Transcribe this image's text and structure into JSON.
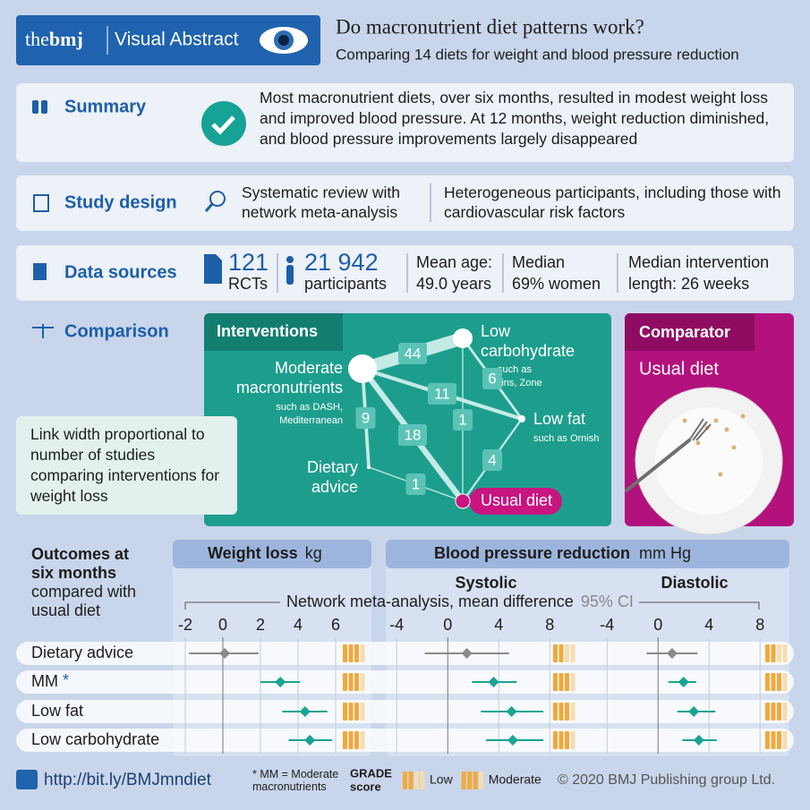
{
  "header": {
    "brand_the": "the",
    "brand_bmj": "bmj",
    "label": "Visual Abstract",
    "title": "Do macronutrient diet patterns work?",
    "subtitle": "Comparing 14 diets for weight and blood pressure reduction"
  },
  "summary": {
    "label": "Summary",
    "text": "Most macronutrient diets, over six months, resulted in modest weight loss and improved blood pressure. At 12 months, weight reduction diminished, and blood pressure improvements largely disappeared"
  },
  "study_design": {
    "label": "Study design",
    "items": [
      "Systematic review with network meta-analysis",
      "Heterogeneous participants, including those with cardiovascular risk factors"
    ]
  },
  "data_sources": {
    "label": "Data sources",
    "items": [
      {
        "top": "121",
        "bottom": "RCTs"
      },
      {
        "top": "21 942",
        "bottom": "participants"
      },
      {
        "top": "Mean age:",
        "bottom": "49.0 years"
      },
      {
        "top": "Median",
        "bottom": "69% women"
      },
      {
        "top": "Median intervention",
        "bottom": "length: 26 weeks"
      }
    ]
  },
  "comparison": {
    "label": "Comparison",
    "note": "Link width proportional to number of studies comparing interventions for weight loss",
    "interventions": {
      "title": "Interventions",
      "nodes": [
        {
          "lines": [
            "Moderate",
            "macronutrients"
          ],
          "example": [
            "such as DASH,",
            "Mediterranean"
          ]
        },
        {
          "lines": [
            "Low",
            "carbohydrate"
          ],
          "example": [
            "such as",
            "Atkins, Zone"
          ]
        },
        {
          "lines": [
            "Low fat"
          ],
          "example": [
            "such as Ornish"
          ]
        },
        {
          "lines": [
            "Dietary",
            "advice"
          ]
        },
        {
          "lines": [
            "Usual diet"
          ]
        }
      ],
      "links": [
        {
          "source": 0,
          "target": 1,
          "studies": 44
        },
        {
          "source": 0,
          "target": 2,
          "studies": 11
        },
        {
          "source": 0,
          "target": 3,
          "studies": 9
        },
        {
          "source": 0,
          "target": 4,
          "studies": 18
        },
        {
          "source": 1,
          "target": 4,
          "studies": 1
        },
        {
          "source": 1,
          "target": 2,
          "studies": 6
        },
        {
          "source": 3,
          "target": 4,
          "studies": 1
        },
        {
          "source": 2,
          "target": 4,
          "studies": 4
        }
      ]
    },
    "comparator": {
      "title": "Comparator",
      "label": "Usual diet"
    }
  },
  "outcomes": {
    "title": "Outcomes at six months",
    "subtitle": "compared with usual diet",
    "group_title": "Blood pressure reduction",
    "group_unit": "mm Hg",
    "axis_label": "Network meta-analysis, mean difference",
    "ci_label": "95% CI",
    "rows": [
      {
        "label": "Dietary advice",
        "color": "#8a8a8a"
      },
      {
        "label": "MM",
        "marker": "*",
        "color": "#1aa394"
      },
      {
        "label": "Low fat",
        "color": "#1aa394"
      },
      {
        "label": "Low carbohydrate",
        "color": "#1aa394"
      }
    ],
    "panels": [
      {
        "title": "Weight loss",
        "unit": "kg",
        "xlim": [
          -2.5,
          6.2
        ],
        "xticks": [
          -2,
          0,
          2,
          4,
          6
        ],
        "series": [
          {
            "mean": 0.1,
            "low": -1.8,
            "high": 1.9,
            "grade": 3
          },
          {
            "mean": 3.06,
            "low": 2.0,
            "high": 4.1,
            "grade": 3
          },
          {
            "mean": 4.37,
            "low": 3.16,
            "high": 5.56,
            "grade": 3
          },
          {
            "mean": 4.63,
            "low": 3.5,
            "high": 5.8,
            "grade": 3
          }
        ]
      },
      {
        "title": "Systolic",
        "xlim": [
          -5,
          8.5
        ],
        "xticks": [
          -4,
          0,
          4,
          8
        ],
        "series": [
          {
            "mean": 1.5,
            "low": -1.8,
            "high": 4.8,
            "grade": 2
          },
          {
            "mean": 3.6,
            "low": 1.9,
            "high": 5.4,
            "grade": 3
          },
          {
            "mean": 5.0,
            "low": 2.6,
            "high": 7.5,
            "grade": 3
          },
          {
            "mean": 5.1,
            "low": 3.0,
            "high": 7.5,
            "grade": 3
          }
        ]
      },
      {
        "title": "Diastolic",
        "xlim": [
          -5,
          8.3
        ],
        "xticks": [
          -4,
          0,
          4,
          8
        ],
        "series": [
          {
            "mean": 1.1,
            "low": -0.9,
            "high": 3.1,
            "grade": 2
          },
          {
            "mean": 2.0,
            "low": 0.8,
            "high": 3.0,
            "grade": 3
          },
          {
            "mean": 2.8,
            "low": 1.5,
            "high": 4.5,
            "grade": 3
          },
          {
            "mean": 3.2,
            "low": 1.9,
            "high": 4.6,
            "grade": 3
          }
        ]
      }
    ]
  },
  "footer": {
    "url": "http://bit.ly/BMJmndiet",
    "footnote": "* MM = Moderate macronutrients",
    "grade_title": "GRADE",
    "grade_subtitle": "score",
    "grade_legend": [
      {
        "label": "Low",
        "filled": 2
      },
      {
        "label": "Moderate",
        "filled": 3
      }
    ],
    "copyright": "© 2020 BMJ Publishing group Ltd."
  }
}
